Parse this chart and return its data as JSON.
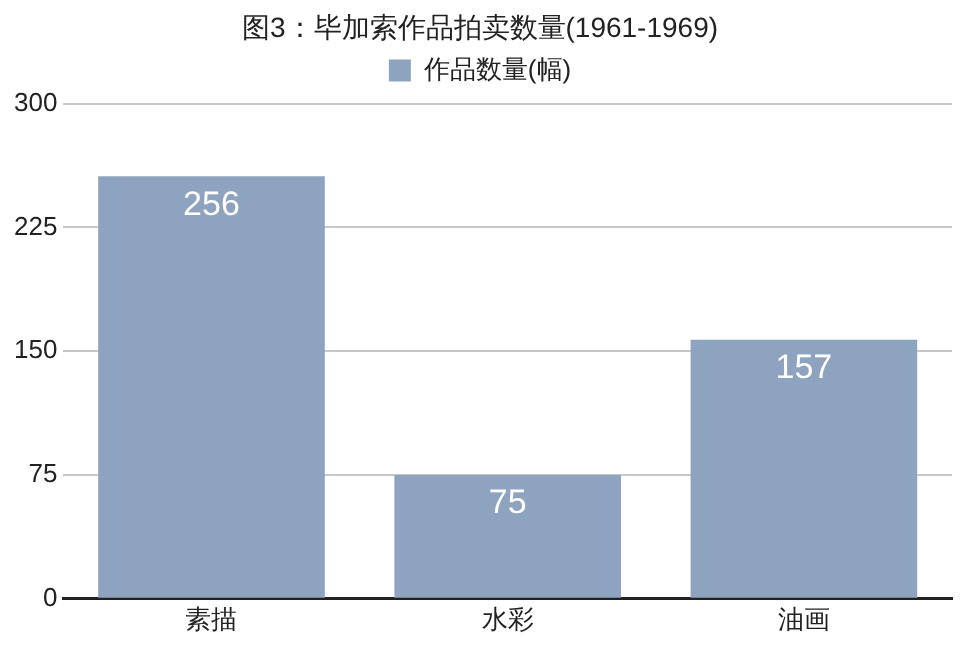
{
  "chart_data": {
    "type": "bar",
    "title": "图3：毕加索作品拍卖数量(1961-1969)",
    "categories": [
      "素描",
      "水彩",
      "油画"
    ],
    "series": [
      {
        "name": "作品数量(幅)",
        "color": "#8ea3bf",
        "values": [
          256,
          75,
          157
        ]
      }
    ],
    "ylim": [
      0,
      300
    ],
    "yticks": [
      0,
      75,
      150,
      225,
      300
    ],
    "grid": "y",
    "legend": "top",
    "data_labels": true
  }
}
